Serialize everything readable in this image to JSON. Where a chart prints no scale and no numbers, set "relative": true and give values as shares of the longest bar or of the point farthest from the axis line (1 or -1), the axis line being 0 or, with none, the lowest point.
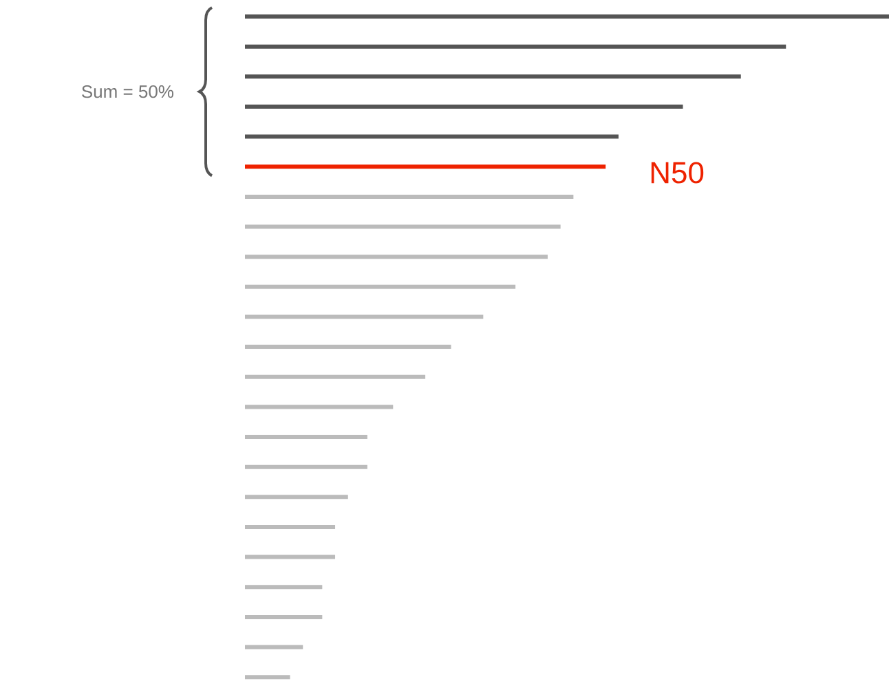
{
  "chart_data": {
    "type": "bar",
    "orientation": "horizontal",
    "relative": true,
    "categories": [
      null,
      null,
      null,
      null,
      null,
      null,
      null,
      null,
      null,
      null,
      null,
      null,
      null,
      null,
      null,
      null,
      null,
      null,
      null,
      null,
      null,
      null,
      null
    ],
    "values": [
      1,
      0.84,
      0.77,
      0.68,
      0.58,
      0.56,
      0.51,
      0.49,
      0.47,
      0.42,
      0.37,
      0.32,
      0.28,
      0.23,
      0.19,
      0.19,
      0.16,
      0.14,
      0.14,
      0.12,
      0.12,
      0.09,
      0.07
    ],
    "colors": [
      "#555555",
      "#555555",
      "#555555",
      "#555555",
      "#555555",
      "#ee2200",
      "#bbbbbb",
      "#bbbbbb",
      "#bbbbbb",
      "#bbbbbb",
      "#bbbbbb",
      "#bbbbbb",
      "#bbbbbb",
      "#bbbbbb",
      "#bbbbbb",
      "#bbbbbb",
      "#bbbbbb",
      "#bbbbbb",
      "#bbbbbb",
      "#bbbbbb",
      "#bbbbbb",
      "#bbbbbb",
      "#bbbbbb"
    ],
    "annotations": [
      "Sum = 50%",
      "N50"
    ]
  }
}
